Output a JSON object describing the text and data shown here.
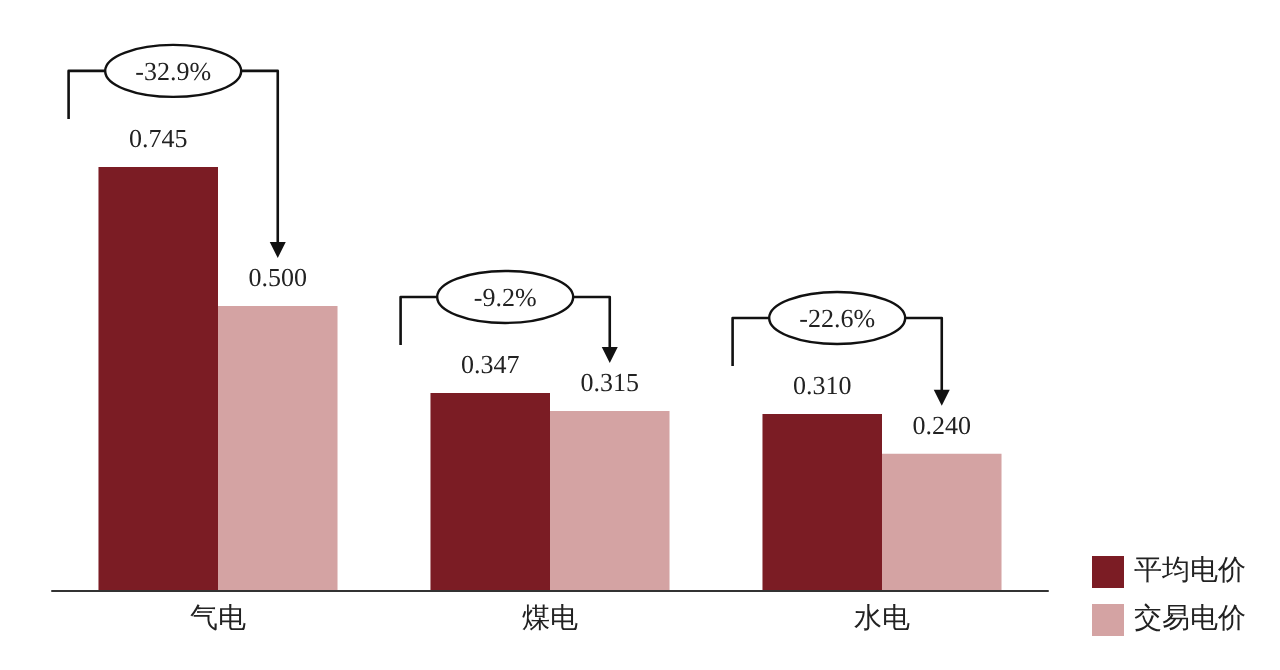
{
  "chart_data": {
    "type": "bar",
    "categories": [
      "气电",
      "煤电",
      "水电"
    ],
    "series": [
      {
        "name": "平均电价",
        "color": "#7b1c24",
        "values": [
          0.745,
          0.347,
          0.31
        ],
        "value_labels": [
          "0.745",
          "0.347",
          "0.310"
        ]
      },
      {
        "name": "交易电价",
        "color": "#d4a3a3",
        "values": [
          0.5,
          0.315,
          0.24
        ],
        "value_labels": [
          "0.500",
          "0.315",
          "0.240"
        ]
      }
    ],
    "tick_labels": "x",
    "grid": false,
    "legend": "bottom right",
    "annotations": [
      "-32.9%",
      "-9.2%",
      "-22.6%"
    ]
  }
}
